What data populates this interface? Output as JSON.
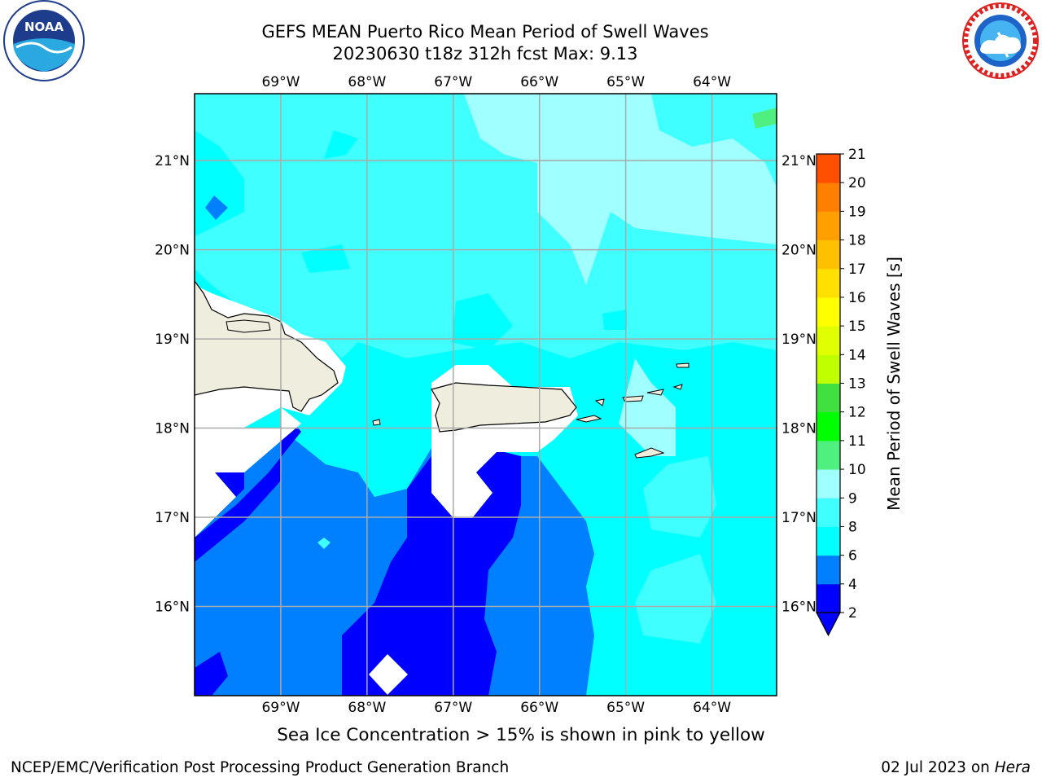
{
  "header": {
    "title_line1": "GEFS MEAN Puerto Rico Mean Period of Swell Waves",
    "title_line2": "20230630 t18z 312h fcst   Max: 9.13"
  },
  "logos": {
    "noaa": {
      "icon": "noaa-logo",
      "text": "NOAA"
    },
    "nws": {
      "icon": "nws-logo"
    }
  },
  "map": {
    "region": "Puerto Rico",
    "lon_range": [
      -70.0,
      -63.25
    ],
    "lat_range": [
      15.0,
      21.75
    ],
    "lon_ticks": [
      "69°W",
      "68°W",
      "67°W",
      "66°W",
      "65°W",
      "64°W"
    ],
    "lat_ticks": [
      "21°N",
      "20°N",
      "19°N",
      "18°N",
      "17°N",
      "16°N"
    ],
    "grid": true,
    "land_color": "#efedde",
    "coast_color": "#000000"
  },
  "colorbar": {
    "label": "Mean Period of Swell Waves [s]",
    "ticks": [
      "2",
      "4",
      "6",
      "8",
      "9",
      "10",
      "11",
      "12",
      "13",
      "14",
      "15",
      "16",
      "17",
      "18",
      "19",
      "20",
      "21"
    ],
    "colors": [
      "#0000ff",
      "#0080ff",
      "#00ffff",
      "#40ffff",
      "#a0ffff",
      "#50f080",
      "#00ff00",
      "#40e040",
      "#c0ff00",
      "#e0ff00",
      "#ffff00",
      "#ffe000",
      "#ffc000",
      "#ffa000",
      "#ff8000",
      "#ff5000",
      "#ff2000",
      "#ff0000"
    ],
    "extend": "min"
  },
  "note": "Sea Ice Concentration > 15% is shown in pink to yellow",
  "footer": {
    "left": "NCEP/EMC/Verification Post Processing Product Generation Branch",
    "right_prefix": "02 Jul 2023 on ",
    "right_machine": "Hera"
  }
}
